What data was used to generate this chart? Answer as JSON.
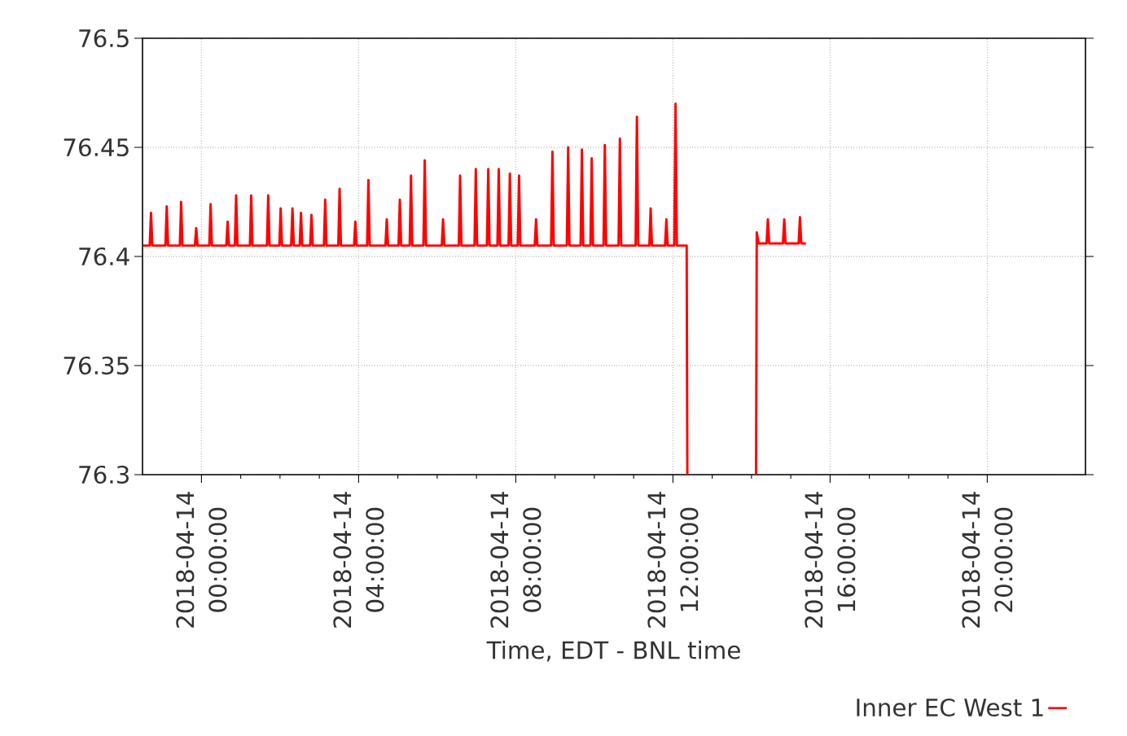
{
  "chart_data": {
    "type": "line",
    "xlabel": "Time, EDT - BNL time",
    "xlim": [
      "2018-04-13T22:30",
      "2018-04-14T22:30"
    ],
    "xticks": [
      {
        "value": "2018-04-14T00:00",
        "label": "2018-04-14 00:00:00"
      },
      {
        "value": "2018-04-14T04:00",
        "label": "2018-04-14 04:00:00"
      },
      {
        "value": "2018-04-14T08:00",
        "label": "2018-04-14 08:00:00"
      },
      {
        "value": "2018-04-14T12:00",
        "label": "2018-04-14 12:00:00"
      },
      {
        "value": "2018-04-14T16:00",
        "label": "2018-04-14 16:00:00"
      },
      {
        "value": "2018-04-14T20:00",
        "label": "2018-04-14 20:00:00"
      }
    ],
    "ylim": [
      76.3,
      76.5
    ],
    "yticks": [
      76.3,
      76.35,
      76.4,
      76.45,
      76.5
    ],
    "grid": true,
    "legend": "bottom right",
    "x": [
      "2018-04-13T22:31",
      "2018-04-13T22:41",
      "2018-04-13T22:43",
      "2018-04-13T22:45",
      "2018-04-13T23:05",
      "2018-04-13T23:07",
      "2018-04-13T23:09",
      "2018-04-13T23:27",
      "2018-04-13T23:29",
      "2018-04-13T23:31",
      "2018-04-13T23:50",
      "2018-04-13T23:52",
      "2018-04-13T23:54",
      "2018-04-14T00:12",
      "2018-04-14T00:14",
      "2018-04-14T00:16",
      "2018-04-14T00:38",
      "2018-04-14T00:40",
      "2018-04-14T00:42",
      "2018-04-14T00:51",
      "2018-04-14T00:53",
      "2018-04-14T00:55",
      "2018-04-14T01:14",
      "2018-04-14T01:16",
      "2018-04-14T01:18",
      "2018-04-14T01:40",
      "2018-04-14T01:42",
      "2018-04-14T01:44",
      "2018-04-14T01:59",
      "2018-04-14T02:01",
      "2018-04-14T02:03",
      "2018-04-14T02:17",
      "2018-04-14T02:19",
      "2018-04-14T02:21",
      "2018-04-14T02:30",
      "2018-04-14T02:32",
      "2018-04-14T02:34",
      "2018-04-14T02:46",
      "2018-04-14T02:48",
      "2018-04-14T02:50",
      "2018-04-14T03:07",
      "2018-04-14T03:09",
      "2018-04-14T03:11",
      "2018-04-14T03:29",
      "2018-04-14T03:31",
      "2018-04-14T03:33",
      "2018-04-14T03:53",
      "2018-04-14T03:55",
      "2018-04-14T03:57",
      "2018-04-14T04:13",
      "2018-04-14T04:15",
      "2018-04-14T04:17",
      "2018-04-14T04:41",
      "2018-04-14T04:43",
      "2018-04-14T04:45",
      "2018-04-14T05:01",
      "2018-04-14T05:03",
      "2018-04-14T05:05",
      "2018-04-14T05:18",
      "2018-04-14T05:20",
      "2018-04-14T05:22",
      "2018-04-14T05:39",
      "2018-04-14T05:41",
      "2018-04-14T05:43",
      "2018-04-14T06:07",
      "2018-04-14T06:09",
      "2018-04-14T06:11",
      "2018-04-14T06:33",
      "2018-04-14T06:35",
      "2018-04-14T06:37",
      "2018-04-14T06:57",
      "2018-04-14T06:59",
      "2018-04-14T07:01",
      "2018-04-14T07:16",
      "2018-04-14T07:18",
      "2018-04-14T07:20",
      "2018-04-14T07:32",
      "2018-04-14T07:34",
      "2018-04-14T07:36",
      "2018-04-14T07:49",
      "2018-04-14T07:51",
      "2018-04-14T07:53",
      "2018-04-14T08:03",
      "2018-04-14T08:05",
      "2018-04-14T08:07",
      "2018-04-14T08:29",
      "2018-04-14T08:31",
      "2018-04-14T08:33",
      "2018-04-14T08:54",
      "2018-04-14T08:56",
      "2018-04-14T08:58",
      "2018-04-14T09:18",
      "2018-04-14T09:20",
      "2018-04-14T09:22",
      "2018-04-14T09:39",
      "2018-04-14T09:41",
      "2018-04-14T09:43",
      "2018-04-14T09:54",
      "2018-04-14T09:56",
      "2018-04-14T09:58",
      "2018-04-14T10:14",
      "2018-04-14T10:16",
      "2018-04-14T10:18",
      "2018-04-14T10:37",
      "2018-04-14T10:39",
      "2018-04-14T10:41",
      "2018-04-14T11:03",
      "2018-04-14T11:05",
      "2018-04-14T11:07",
      "2018-04-14T11:24",
      "2018-04-14T11:26",
      "2018-04-14T11:28",
      "2018-04-14T11:48",
      "2018-04-14T11:50",
      "2018-04-14T11:52",
      "2018-04-14T12:02",
      "2018-04-14T12:04",
      "2018-04-14T12:06",
      "2018-04-14T12:21",
      "2018-04-14T12:22",
      "2018-04-14T13:15",
      "2018-04-14T14:07",
      "2018-04-14T14:08",
      "2018-04-14T14:11",
      "2018-04-14T14:23",
      "2018-04-14T14:25",
      "2018-04-14T14:27",
      "2018-04-14T14:48",
      "2018-04-14T14:50",
      "2018-04-14T14:52",
      "2018-04-14T15:12",
      "2018-04-14T15:14",
      "2018-04-14T15:16",
      "2018-04-14T15:23"
    ],
    "series": [
      {
        "name": "Inner EC West 1",
        "color": "#ff0000",
        "values": [
          76.405,
          76.405,
          76.42,
          76.405,
          76.405,
          76.423,
          76.405,
          76.405,
          76.425,
          76.405,
          76.405,
          76.413,
          76.405,
          76.405,
          76.424,
          76.405,
          76.405,
          76.416,
          76.405,
          76.405,
          76.428,
          76.405,
          76.405,
          76.428,
          76.405,
          76.405,
          76.428,
          76.405,
          76.405,
          76.422,
          76.405,
          76.405,
          76.422,
          76.405,
          76.405,
          76.42,
          76.405,
          76.405,
          76.419,
          76.405,
          76.405,
          76.426,
          76.405,
          76.405,
          76.431,
          76.405,
          76.405,
          76.416,
          76.405,
          76.405,
          76.435,
          76.405,
          76.405,
          76.417,
          76.405,
          76.405,
          76.426,
          76.405,
          76.405,
          76.437,
          76.405,
          76.405,
          76.444,
          76.405,
          76.405,
          76.417,
          76.405,
          76.405,
          76.437,
          76.405,
          76.405,
          76.44,
          76.405,
          76.405,
          76.44,
          76.405,
          76.405,
          76.44,
          76.405,
          76.405,
          76.438,
          76.405,
          76.405,
          76.437,
          76.405,
          76.405,
          76.417,
          76.405,
          76.405,
          76.448,
          76.405,
          76.405,
          76.45,
          76.405,
          76.405,
          76.449,
          76.405,
          76.405,
          76.445,
          76.405,
          76.405,
          76.451,
          76.405,
          76.405,
          76.454,
          76.405,
          76.405,
          76.464,
          76.405,
          76.405,
          76.422,
          76.405,
          76.405,
          76.417,
          76.405,
          76.405,
          76.47,
          76.405,
          76.405,
          76.3,
          null,
          76.3,
          76.411,
          76.406,
          76.406,
          76.417,
          76.406,
          76.406,
          76.417,
          76.406,
          76.406,
          76.418,
          76.406,
          76.406
        ]
      }
    ]
  }
}
